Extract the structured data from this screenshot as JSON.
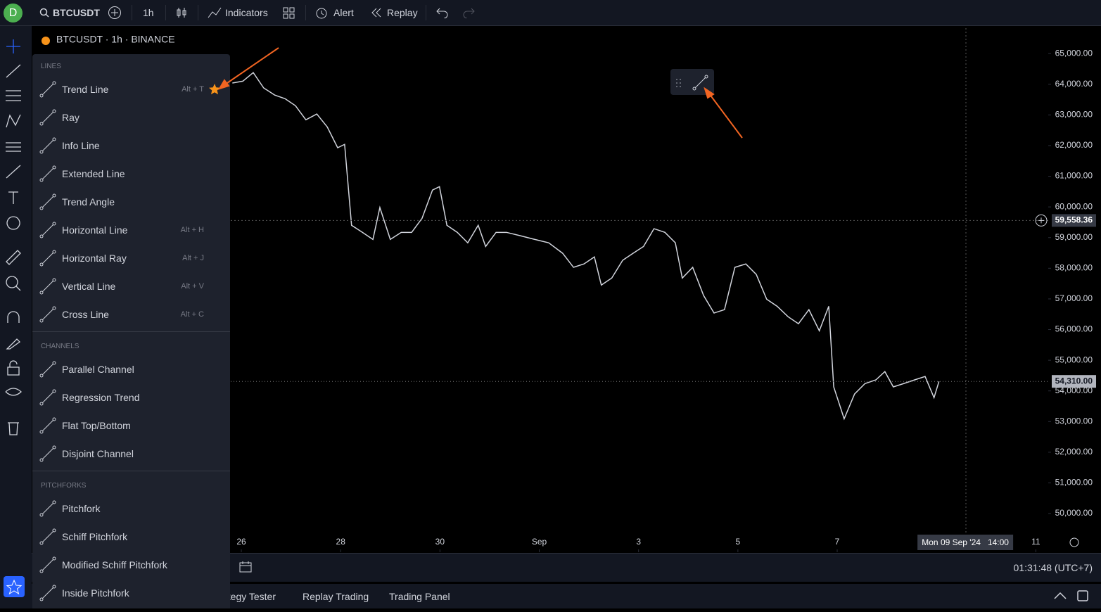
{
  "top_bar": {
    "avatar": "D",
    "symbol": "BTCUSDT",
    "interval": "1h",
    "indicators": "Indicators",
    "alert": "Alert",
    "replay": "Replay"
  },
  "chart_legend": "BTCUSDT · 1h · BINANCE",
  "drawing_menu": {
    "sections": [
      {
        "title": "LINES",
        "items": [
          {
            "label": "Trend Line",
            "shortcut": "Alt + T"
          },
          {
            "label": "Ray"
          },
          {
            "label": "Info Line"
          },
          {
            "label": "Extended Line"
          },
          {
            "label": "Trend Angle"
          },
          {
            "label": "Horizontal Line",
            "shortcut": "Alt + H"
          },
          {
            "label": "Horizontal Ray",
            "shortcut": "Alt + J"
          },
          {
            "label": "Vertical Line",
            "shortcut": "Alt + V"
          },
          {
            "label": "Cross Line",
            "shortcut": "Alt + C"
          }
        ]
      },
      {
        "title": "CHANNELS",
        "items": [
          {
            "label": "Parallel Channel"
          },
          {
            "label": "Regression Trend"
          },
          {
            "label": "Flat Top/Bottom"
          },
          {
            "label": "Disjoint Channel"
          }
        ]
      },
      {
        "title": "PITCHFORKS",
        "items": [
          {
            "label": "Pitchfork"
          },
          {
            "label": "Schiff Pitchfork"
          },
          {
            "label": "Modified Schiff Pitchfork"
          },
          {
            "label": "Inside Pitchfork"
          }
        ]
      }
    ]
  },
  "chart_data": {
    "type": "line",
    "x": [
      -0.18,
      0.03,
      0.24,
      0.45,
      0.67,
      0.88,
      1.09,
      1.3,
      1.52,
      1.73,
      1.94,
      2.08,
      2.22,
      2.44,
      2.65,
      2.79,
      3.0,
      3.22,
      3.43,
      3.64,
      3.85,
      3.99,
      4.14,
      4.35,
      4.56,
      4.77,
      4.92,
      5.13,
      5.34,
      5.62,
      5.91,
      6.19,
      6.47,
      6.69,
      6.9,
      7.11,
      7.25,
      7.46,
      7.68,
      7.89,
      8.1,
      8.31,
      8.53,
      8.74,
      8.88,
      9.09,
      9.31,
      9.52,
      9.73,
      9.94,
      10.16,
      10.37,
      10.58,
      10.79,
      11.01,
      11.22,
      11.43,
      11.64,
      11.83,
      11.93,
      12.14,
      12.35,
      12.56,
      12.78,
      12.96,
      13.13,
      13.34,
      13.56,
      13.77,
      13.95,
      14.05
    ],
    "series": [
      {
        "name": "BTCUSDT",
        "color": "#d1d4dc",
        "values": [
          64040,
          64100,
          64380,
          63880,
          63650,
          63530,
          63300,
          62840,
          63030,
          62610,
          61930,
          62040,
          59400,
          59170,
          58940,
          59980,
          58940,
          59170,
          59170,
          59630,
          60550,
          60660,
          59400,
          59170,
          58830,
          59400,
          58710,
          59170,
          59170,
          59060,
          58940,
          58830,
          58490,
          58030,
          58140,
          58370,
          57450,
          57680,
          58260,
          58490,
          58710,
          59290,
          59170,
          58830,
          57680,
          58030,
          57110,
          56540,
          56650,
          58030,
          58140,
          57800,
          56990,
          56760,
          56420,
          56190,
          56650,
          55960,
          56760,
          54130,
          53090,
          53900,
          54240,
          54360,
          54630,
          54130,
          54240,
          54360,
          54470,
          53780,
          54310
        ]
      }
    ],
    "xlim": [
      -4.18,
      16.25
    ],
    "ylim": [
      48740,
      65830
    ],
    "xticks": [
      {
        "value": 0,
        "label": "26"
      },
      {
        "value": 2,
        "label": "28"
      },
      {
        "value": 4,
        "label": "30"
      },
      {
        "value": 6,
        "label": "Sep"
      },
      {
        "value": 8,
        "label": "3"
      },
      {
        "value": 10,
        "label": "5"
      },
      {
        "value": 12,
        "label": "7"
      },
      {
        "value": 16,
        "label": "11"
      }
    ],
    "yticks": [
      {
        "value": 65000,
        "label": "65,000.00"
      },
      {
        "value": 64000,
        "label": "64,000.00"
      },
      {
        "value": 63000,
        "label": "63,000.00"
      },
      {
        "value": 62000,
        "label": "62,000.00"
      },
      {
        "value": 61000,
        "label": "61,000.00"
      },
      {
        "value": 60000,
        "label": "60,000.00"
      },
      {
        "value": 59000,
        "label": "59,000.00"
      },
      {
        "value": 58000,
        "label": "58,000.00"
      },
      {
        "value": 57000,
        "label": "57,000.00"
      },
      {
        "value": 56000,
        "label": "56,000.00"
      },
      {
        "value": 55000,
        "label": "55,000.00"
      },
      {
        "value": 54000,
        "label": "54,000.00"
      },
      {
        "value": 53000,
        "label": "53,000.00"
      },
      {
        "value": 52000,
        "label": "52,000.00"
      },
      {
        "value": 51000,
        "label": "51,000.00"
      },
      {
        "value": 50000,
        "label": "50,000.00"
      }
    ],
    "crosshair_price": {
      "value": 59558.36,
      "label": "59,558.36"
    },
    "crosshair_time": {
      "value": 14.58,
      "label": "Mon 09 Sep '24   14:00"
    },
    "last_price": {
      "value": 54310,
      "label": "54,310.00"
    }
  },
  "bottom_bar": {
    "clock": "01:31:48 (UTC+7)",
    "tabs": [
      "ategy Tester",
      "Replay Trading",
      "Trading Panel"
    ]
  }
}
